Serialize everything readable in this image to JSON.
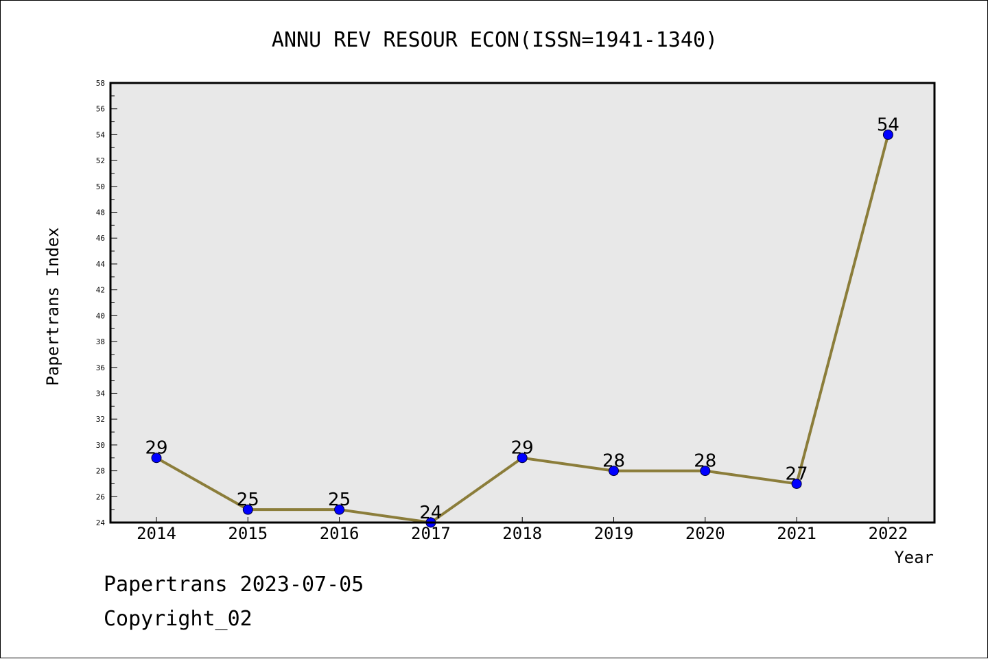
{
  "chart_data": {
    "type": "line",
    "title": "ANNU REV RESOUR ECON(ISSN=1941-1340)",
    "xlabel": "Year",
    "ylabel": "Papertrans Index",
    "categories": [
      "2014",
      "2015",
      "2016",
      "2017",
      "2018",
      "2019",
      "2020",
      "2021",
      "2022"
    ],
    "series": [
      {
        "values": [
          29,
          25,
          25,
          24,
          29,
          28,
          28,
          27,
          54
        ]
      }
    ],
    "data_labels": [
      "29",
      "25",
      "25",
      "24",
      "29",
      "28",
      "28",
      "27",
      "54"
    ],
    "ylim": [
      24,
      58
    ],
    "yticks": [
      "24",
      "26",
      "28",
      "30",
      "32",
      "34",
      "36",
      "38",
      "40",
      "42",
      "44",
      "46",
      "48",
      "50",
      "52",
      "54",
      "56",
      "58"
    ],
    "grid": false,
    "colors": {
      "line": "#8b7d3a",
      "marker": "#0000ff",
      "plot_background": "#e8e8e8"
    }
  },
  "footer": {
    "line1": "Papertrans 2023-07-05",
    "line2": "Copyright_02"
  }
}
